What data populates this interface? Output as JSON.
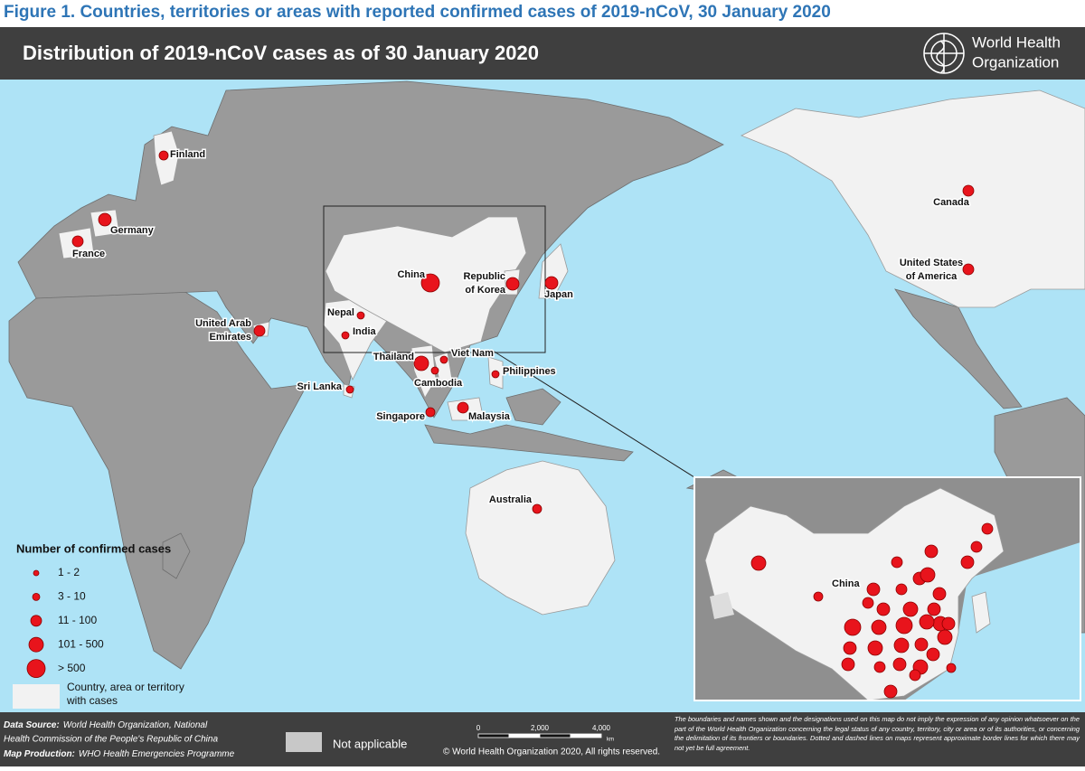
{
  "figure_title": "Figure 1. Countries, territories or areas with reported confirmed cases of 2019-nCoV, 30 January 2020",
  "header": {
    "title": "Distribution of 2019-nCoV cases as of 30 January 2020",
    "logo": [
      "World Health",
      "Organization"
    ]
  },
  "map": {
    "countries": [
      [
        "Finland"
      ],
      [
        "Germany"
      ],
      [
        "France"
      ],
      [
        "United Arab",
        "Emirates"
      ],
      [
        "Nepal"
      ],
      [
        "India"
      ],
      [
        "Sri Lanka"
      ],
      [
        "China"
      ],
      [
        "Republic",
        "of Korea"
      ],
      [
        "Japan"
      ],
      [
        "Thailand"
      ],
      [
        "Viet Nam"
      ],
      [
        "Cambodia"
      ],
      [
        "Philippines"
      ],
      [
        "Singapore"
      ],
      [
        "Malaysia"
      ],
      [
        "Australia"
      ],
      [
        "Canada"
      ],
      [
        "United States",
        "of America"
      ]
    ],
    "inset_label": "China"
  },
  "legend": {
    "title": "Number of confirmed cases",
    "classes": [
      "1 - 2",
      "3 - 10",
      "11 - 100",
      "101 - 500",
      "> 500"
    ],
    "with_cases": [
      "Country, area or territory",
      "with cases"
    ],
    "not_applicable": "Not applicable"
  },
  "footer": {
    "source_label": "Data Source:",
    "source": [
      "World Health Organization, National",
      "Health Commission of the People's Republic of China"
    ],
    "production_label": "Map Production:",
    "production": "WHO Health Emergencies Programme",
    "scale": [
      "0",
      "2,000",
      "4,000",
      "km"
    ],
    "copyright": "© World Health Organization  2020,  All rights reserved.",
    "disclaimer": "The boundaries and names shown and the designations used on this map do not imply the expression of any opinion whatsoever on the part of the World Health Organization concerning the legal status of any country, territory, city or area or of its authorities, or concerning the delimitation of its frontiers or boundaries. Dotted and dashed lines on maps represent approximate border lines for which there may not yet be full agreement."
  }
}
